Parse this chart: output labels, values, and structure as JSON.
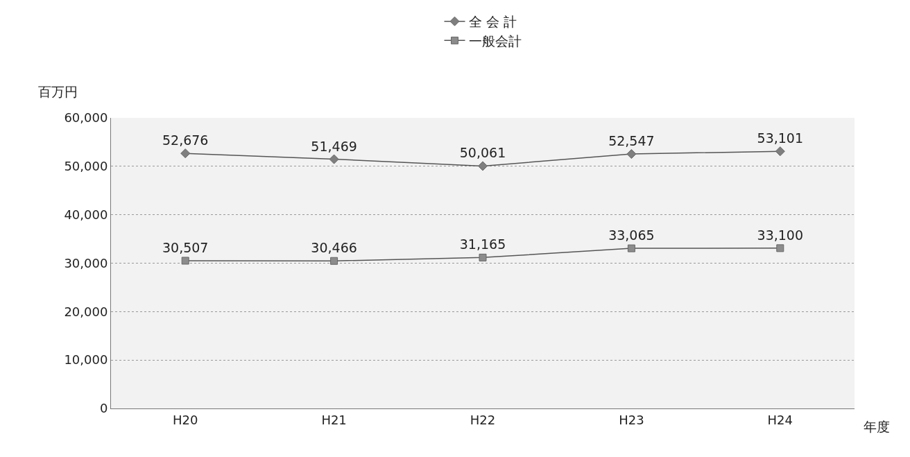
{
  "chart_data": {
    "type": "line",
    "ylabel": "百万円",
    "xlabel": "年度",
    "categories": [
      "H20",
      "H21",
      "H22",
      "H23",
      "H24"
    ],
    "series": [
      {
        "name": "全 会 計",
        "color": "#7f7f7f",
        "marker": "diamond",
        "values": [
          52676,
          51469,
          50061,
          52547,
          53101
        ],
        "value_labels": [
          "52,676",
          "51,469",
          "50,061",
          "52,547",
          "53,101"
        ]
      },
      {
        "name": "一般会計",
        "color": "#8c8c8c",
        "marker": "square",
        "values": [
          30507,
          30466,
          31165,
          33065,
          33100
        ],
        "value_labels": [
          "30,507",
          "30,466",
          "31,165",
          "33,065",
          "33,100"
        ]
      }
    ],
    "ylim": [
      0,
      60000
    ],
    "yticks": [
      {
        "value": 0,
        "label": "0"
      },
      {
        "value": 10000,
        "label": "10,000"
      },
      {
        "value": 20000,
        "label": "20,000"
      },
      {
        "value": 30000,
        "label": "30,000"
      },
      {
        "value": 40000,
        "label": "40,000"
      },
      {
        "value": 50000,
        "label": "50,000"
      },
      {
        "value": 60000,
        "label": "60,000"
      }
    ],
    "grid": "y",
    "legend": "top",
    "line_style": "solid"
  }
}
